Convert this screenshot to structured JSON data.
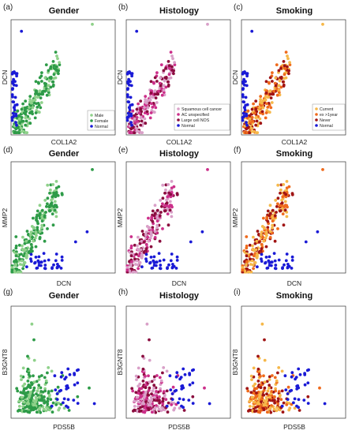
{
  "colors": {
    "Male": "#8fd18a",
    "Female": "#2e9b48",
    "Normal": "#1a1ad6",
    "Squamous cell cancer": "#d9a0c8",
    "AC unspecified": "#cc2f8a",
    "Large cell NOS": "#8a0c3e",
    "Current": "#f6b84a",
    "ex >1year": "#ef6a1c",
    "Never": "#a01414"
  },
  "row_axes": [
    {
      "x": "COL1A2",
      "y": "DCN"
    },
    {
      "x": "DCN",
      "y": "MMP2"
    },
    {
      "x": "PDS5B",
      "y": "B3GNT8"
    }
  ],
  "column_titles": [
    "Gender",
    "Histology",
    "Smoking"
  ],
  "panel_letters": [
    "(a)",
    "(b)",
    "(c)",
    "(d)",
    "(e)",
    "(f)",
    "(g)",
    "(h)",
    "(i)"
  ],
  "legends": [
    {
      "panel": "(a)",
      "items": [
        "Male",
        "Female",
        "Normal"
      ]
    },
    {
      "panel": "(b)",
      "items": [
        "Squamous cell cancer",
        "AC unspecified",
        "Large cell NOS",
        "Normal"
      ]
    },
    {
      "panel": "(c)",
      "items": [
        "Current",
        "ex >1year",
        "Never",
        "Normal"
      ]
    }
  ],
  "chart_data": [
    {
      "type": "scatter",
      "panel": "(a)",
      "title": "Gender",
      "xlabel": "COL1A2",
      "ylabel": "DCN",
      "grid": false,
      "legend_position": "bottom-right",
      "series": [
        "Male",
        "Female",
        "Normal"
      ]
    },
    {
      "type": "scatter",
      "panel": "(b)",
      "title": "Histology",
      "xlabel": "COL1A2",
      "ylabel": "DCN",
      "grid": false,
      "legend_position": "bottom-right",
      "series": [
        "Squamous cell cancer",
        "AC unspecified",
        "Large cell NOS",
        "Normal"
      ]
    },
    {
      "type": "scatter",
      "panel": "(c)",
      "title": "Smoking",
      "xlabel": "COL1A2",
      "ylabel": "DCN",
      "grid": false,
      "legend_position": "bottom-right",
      "series": [
        "Current",
        "ex >1year",
        "Never",
        "Normal"
      ]
    },
    {
      "type": "scatter",
      "panel": "(d)",
      "title": "Gender",
      "xlabel": "DCN",
      "ylabel": "MMP2",
      "grid": false,
      "series": [
        "Male",
        "Female",
        "Normal"
      ]
    },
    {
      "type": "scatter",
      "panel": "(e)",
      "title": "Histology",
      "xlabel": "DCN",
      "ylabel": "MMP2",
      "grid": false,
      "series": [
        "Squamous cell cancer",
        "AC unspecified",
        "Large cell NOS",
        "Normal"
      ]
    },
    {
      "type": "scatter",
      "panel": "(f)",
      "title": "Smoking",
      "xlabel": "DCN",
      "ylabel": "MMP2",
      "grid": false,
      "series": [
        "Current",
        "ex >1year",
        "Never",
        "Normal"
      ]
    },
    {
      "type": "scatter",
      "panel": "(g)",
      "title": "Gender",
      "xlabel": "PDS5B",
      "ylabel": "B3GNT8",
      "grid": false,
      "series": [
        "Male",
        "Female",
        "Normal"
      ]
    },
    {
      "type": "scatter",
      "panel": "(h)",
      "title": "Histology",
      "xlabel": "PDS5B",
      "ylabel": "B3GNT8",
      "grid": false,
      "series": [
        "Squamous cell cancer",
        "AC unspecified",
        "Large cell NOS",
        "Normal"
      ]
    },
    {
      "type": "scatter",
      "panel": "(i)",
      "title": "Smoking",
      "xlabel": "PDS5B",
      "ylabel": "B3GNT8",
      "grid": false,
      "series": [
        "Current",
        "ex >1year",
        "Never",
        "Normal"
      ]
    }
  ]
}
